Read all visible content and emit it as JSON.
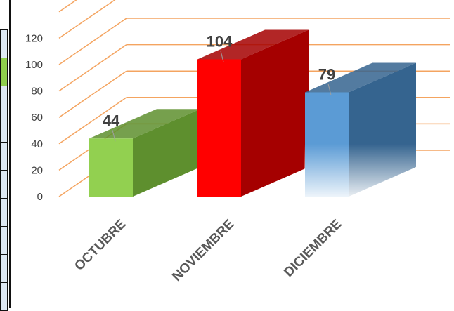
{
  "chart_data": {
    "type": "bar",
    "style": "3d-column",
    "title": "",
    "xlabel": "",
    "ylabel": "",
    "categories": [
      "OCTUBRE",
      "NOVIEMBRE",
      "DICIEMBRE"
    ],
    "values": [
      44,
      104,
      79
    ],
    "data_labels": [
      "44",
      "104",
      "79"
    ],
    "bar_colors": [
      "#92d050",
      "#ff0000",
      "#5b9bd5"
    ],
    "bar_side_colors": [
      "#5e8f2e",
      "#a50000",
      "#35648f"
    ],
    "gridline_color": "#f4a460",
    "yticks": [
      "0",
      "20",
      "40",
      "60",
      "80",
      "100",
      "120"
    ],
    "ylim": [
      0,
      140
    ],
    "grid": true,
    "legend": "none"
  }
}
